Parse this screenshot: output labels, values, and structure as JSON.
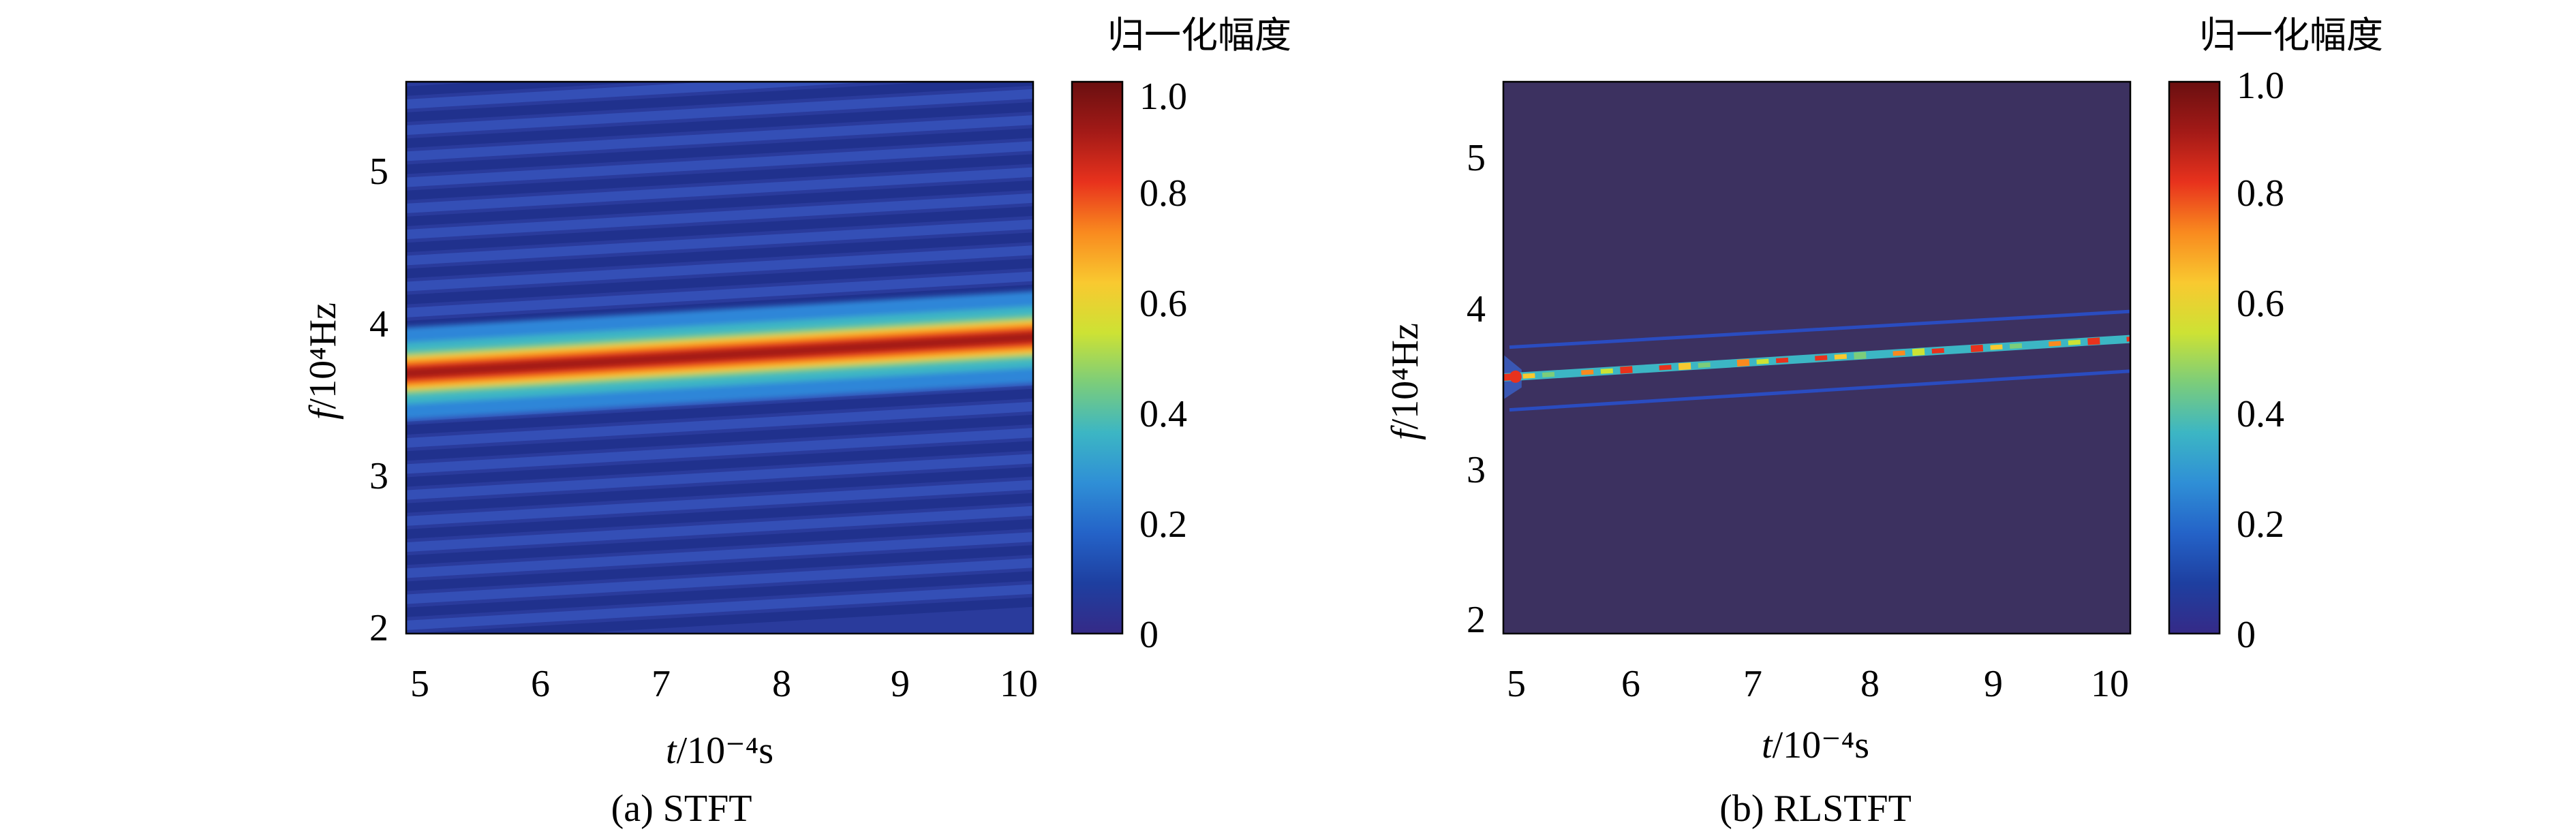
{
  "colormap": [
    "#352a87",
    "#1e3fa0",
    "#2463c8",
    "#2f8fd6",
    "#3cb6c4",
    "#7ccd7a",
    "#cde234",
    "#f9c930",
    "#f98a1f",
    "#e8321d",
    "#a31a17",
    "#6a0f10"
  ],
  "chart_data": [
    {
      "type": "heatmap",
      "title": "(a) STFT",
      "xlabel_var": "t",
      "xlabel_unit": "/10⁻⁴s",
      "ylabel_var": "f",
      "ylabel_unit": "/10⁴Hz",
      "xlim": [
        4.95,
        10.1
      ],
      "ylim": [
        1.95,
        5.55
      ],
      "xticks": [
        5,
        6,
        7,
        8,
        9,
        10
      ],
      "xtick_labels": [
        "5",
        "6",
        "7",
        "8",
        "9",
        "10"
      ],
      "yticks": [
        2,
        3,
        4,
        5
      ],
      "ytick_labels": [
        "2",
        "3",
        "4",
        "5"
      ],
      "ridge": {
        "f_start": 3.65,
        "f_end": 3.88
      },
      "colorbar": {
        "label": "归一化幅度",
        "range": [
          0,
          1.0
        ],
        "ticks": [
          0,
          0.2,
          0.4,
          0.6,
          0.8,
          1.0
        ],
        "tick_labels": [
          "0",
          "0.2",
          "0.4",
          "0.6",
          "0.8",
          "1.0"
        ]
      }
    },
    {
      "type": "heatmap",
      "title": "(b) RLSTFT",
      "xlabel_var": "t",
      "xlabel_unit": "/10⁻⁴s",
      "ylabel_var": "f",
      "ylabel_unit": "/10⁴Hz",
      "xlim": [
        4.95,
        10.1
      ],
      "ylim": [
        1.85,
        5.55
      ],
      "xticks": [
        5,
        6,
        7,
        8,
        9,
        10
      ],
      "xtick_labels": [
        "5",
        "6",
        "7",
        "8",
        "9",
        "10"
      ],
      "yticks": [
        2,
        3,
        4,
        5
      ],
      "ytick_labels": [
        "2",
        "3",
        "4",
        "5"
      ],
      "ridge": {
        "f_start": 3.57,
        "f_end": 3.82
      },
      "colorbar": {
        "label": "归一化幅度",
        "range": [
          0,
          1.0
        ],
        "ticks": [
          0,
          0.2,
          0.4,
          0.6,
          0.8,
          1.0
        ],
        "tick_labels": [
          "0",
          "0.2",
          "0.4",
          "0.6",
          "0.8",
          "1.0"
        ]
      }
    }
  ]
}
